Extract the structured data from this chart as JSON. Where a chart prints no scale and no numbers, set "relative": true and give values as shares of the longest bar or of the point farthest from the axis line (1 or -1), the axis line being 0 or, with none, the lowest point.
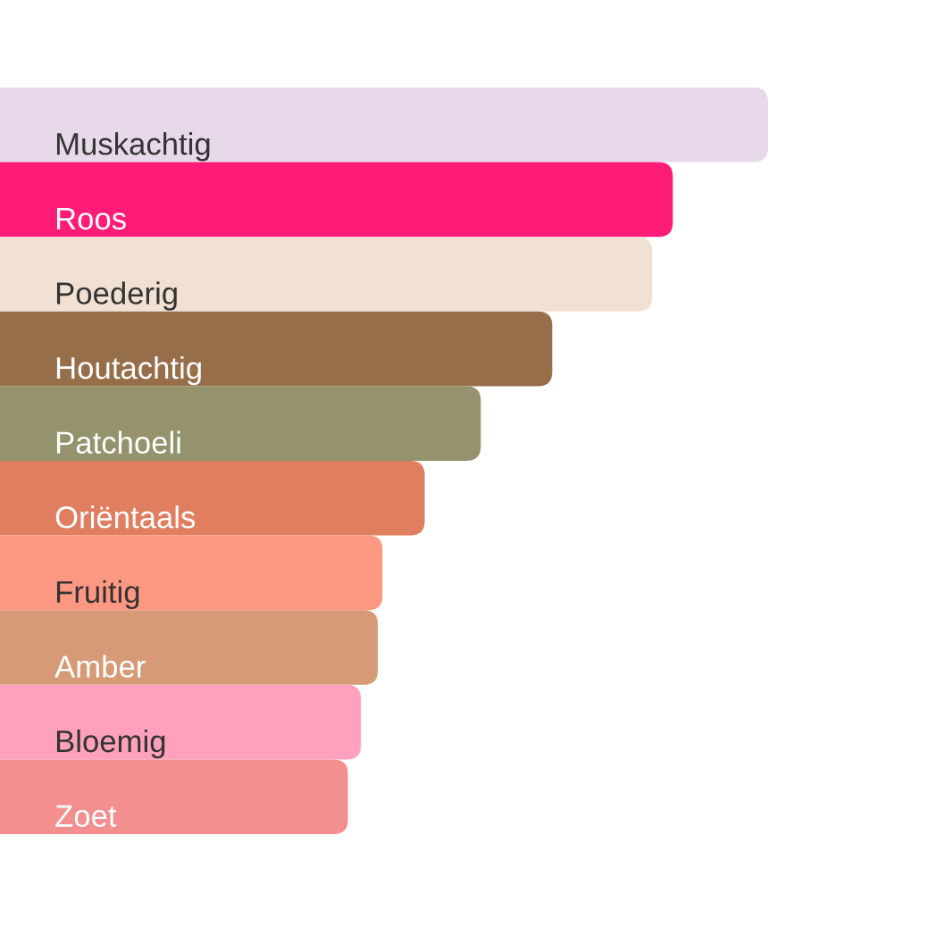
{
  "chart_data": {
    "type": "bar",
    "orientation": "horizontal",
    "relative": true,
    "categories": [
      "Muskachtig",
      "Roos",
      "Poederig",
      "Houtachtig",
      "Patchoeli",
      "Oriëntaals",
      "Fruitig",
      "Amber",
      "Bloemig",
      "Zoet"
    ],
    "values": [
      1,
      0.876,
      0.849,
      0.719,
      0.626,
      0.553,
      0.498,
      0.492,
      0.47,
      0.453
    ],
    "colors": [
      "#e8d9ea",
      "#ff1b78",
      "#f1e1d3",
      "#976e4a",
      "#94936e",
      "#e07f60",
      "#ff9882",
      "#d69b76",
      "#ffa1bc",
      "#f48f90"
    ]
  }
}
